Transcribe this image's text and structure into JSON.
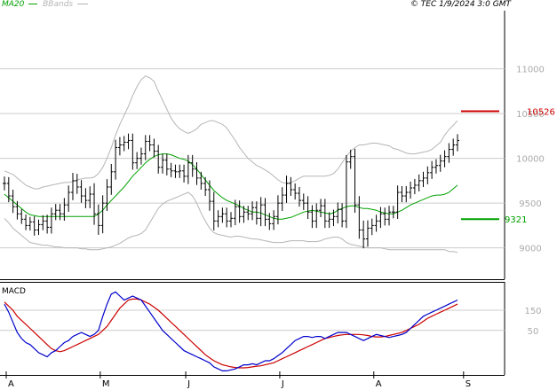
{
  "header": {
    "legend_ma": "MA20",
    "legend_bb": "BBands",
    "copyright": "© TEC 1/9/2024 3:0 GMT"
  },
  "colors": {
    "ma": "#00a000",
    "bbands": "#b5b5b5",
    "price": "#000000",
    "resistance": "#cc0000",
    "support": "#00a000",
    "macd": "#0000cc",
    "signal": "#cc0000",
    "grid": "#cccccc",
    "axis_text": "#aaaaaa"
  },
  "chart_data": [
    {
      "type": "ohlc",
      "name": "price",
      "yticks": [
        {
          "value": 9000,
          "label": "9000"
        },
        {
          "value": 9500,
          "label": "9500"
        },
        {
          "value": 10000,
          "label": "10000"
        },
        {
          "value": 10500,
          "label": "10500"
        },
        {
          "value": 11000,
          "label": "11000"
        }
      ],
      "ylim": [
        8650,
        11650
      ],
      "xticks": [
        "A",
        "M",
        "J",
        "J",
        "A",
        "S"
      ],
      "xtick_day_index": [
        0,
        22,
        42,
        64,
        86,
        107
      ],
      "n_days": 107,
      "closes": [
        9720,
        9580,
        9460,
        9380,
        9320,
        9250,
        9290,
        9200,
        9260,
        9300,
        9230,
        9380,
        9420,
        9380,
        9480,
        9620,
        9750,
        9680,
        9580,
        9530,
        9600,
        9380,
        9250,
        9500,
        9680,
        9850,
        10120,
        10150,
        10180,
        10200,
        9950,
        10000,
        10050,
        10190,
        10150,
        10080,
        9900,
        9980,
        9880,
        9860,
        9850,
        9860,
        9800,
        9950,
        9880,
        9780,
        9720,
        9650,
        9520,
        9300,
        9350,
        9380,
        9300,
        9330,
        9460,
        9350,
        9400,
        9380,
        9450,
        9330,
        9480,
        9320,
        9270,
        9350,
        9500,
        9590,
        9720,
        9650,
        9610,
        9530,
        9500,
        9400,
        9300,
        9420,
        9470,
        9300,
        9320,
        9350,
        9430,
        9300,
        9960,
        10020,
        9480,
        9200,
        9100,
        9220,
        9250,
        9300,
        9380,
        9320,
        9400,
        9400,
        9620,
        9580,
        9620,
        9670,
        9700,
        9750,
        9780,
        9840,
        9900,
        9920,
        9970,
        10020,
        10100,
        10150,
        10200
      ],
      "ranges": [
        220,
        200,
        200,
        180,
        150,
        150,
        160,
        180,
        160,
        180,
        200,
        200,
        200,
        200,
        220,
        220,
        250,
        220,
        220,
        250,
        250,
        350,
        300,
        250,
        250,
        250,
        250,
        250,
        200,
        220,
        220,
        200,
        200,
        200,
        200,
        200,
        200,
        200,
        200,
        200,
        200,
        200,
        200,
        250,
        250,
        220,
        200,
        200,
        300,
        300,
        200,
        200,
        200,
        200,
        220,
        200,
        200,
        200,
        200,
        200,
        250,
        220,
        200,
        200,
        250,
        250,
        250,
        200,
        200,
        200,
        220,
        220,
        220,
        220,
        220,
        220,
        220,
        220,
        220,
        200,
        220,
        220,
        250,
        280,
        300,
        250,
        220,
        200,
        220,
        200,
        200,
        200,
        220,
        200,
        200,
        200,
        200,
        200,
        200,
        200,
        200,
        200,
        200,
        200,
        200,
        200,
        200
      ],
      "ma20": [
        9600,
        9560,
        9520,
        9480,
        9440,
        9400,
        9370,
        9360,
        9350,
        9350,
        9350,
        9350,
        9350,
        9350,
        9350,
        9350,
        9350,
        9350,
        9350,
        9350,
        9350,
        9350,
        9380,
        9420,
        9480,
        9530,
        9580,
        9630,
        9680,
        9740,
        9800,
        9850,
        9900,
        9950,
        9990,
        10020,
        10040,
        10050,
        10050,
        10040,
        10020,
        10000,
        9990,
        9970,
        9930,
        9880,
        9820,
        9760,
        9700,
        9640,
        9600,
        9560,
        9530,
        9510,
        9490,
        9470,
        9440,
        9420,
        9400,
        9400,
        9390,
        9370,
        9350,
        9330,
        9320,
        9320,
        9330,
        9340,
        9360,
        9380,
        9400,
        9410,
        9420,
        9410,
        9400,
        9390,
        9380,
        9390,
        9420,
        9440,
        9460,
        9470,
        9470,
        9450,
        9440,
        9440,
        9430,
        9420,
        9400,
        9390,
        9380,
        9380,
        9400,
        9420,
        9450,
        9480,
        9500,
        9520,
        9540,
        9560,
        9580,
        9590,
        9590,
        9600,
        9620,
        9660,
        9700
      ],
      "bb_upper": [
        9860,
        9840,
        9820,
        9780,
        9740,
        9700,
        9680,
        9660,
        9660,
        9680,
        9690,
        9700,
        9710,
        9720,
        9730,
        9730,
        9740,
        9760,
        9770,
        9780,
        9780,
        9790,
        9830,
        9900,
        10000,
        10120,
        10260,
        10380,
        10480,
        10580,
        10700,
        10800,
        10880,
        10920,
        10900,
        10860,
        10750,
        10650,
        10550,
        10450,
        10380,
        10330,
        10300,
        10280,
        10300,
        10330,
        10380,
        10400,
        10420,
        10420,
        10400,
        10380,
        10340,
        10270,
        10200,
        10120,
        10060,
        10000,
        9960,
        9920,
        9900,
        9870,
        9840,
        9800,
        9760,
        9730,
        9720,
        9730,
        9750,
        9780,
        9800,
        9800,
        9800,
        9800,
        9800,
        9800,
        9810,
        9830,
        9880,
        9950,
        10020,
        10080,
        10120,
        10150,
        10150,
        10160,
        10170,
        10170,
        10160,
        10150,
        10140,
        10110,
        10100,
        10080,
        10060,
        10050,
        10050,
        10060,
        10070,
        10080,
        10100,
        10140,
        10180,
        10260,
        10320,
        10370,
        10420
      ],
      "bb_lower": [
        9330,
        9280,
        9220,
        9180,
        9140,
        9100,
        9060,
        9050,
        9040,
        9030,
        9030,
        9020,
        9010,
        9010,
        9000,
        9000,
        9000,
        9000,
        8990,
        8990,
        8980,
        8980,
        8980,
        8990,
        9000,
        9010,
        9030,
        9050,
        9080,
        9110,
        9130,
        9140,
        9160,
        9200,
        9280,
        9360,
        9440,
        9490,
        9520,
        9540,
        9560,
        9580,
        9600,
        9620,
        9580,
        9500,
        9390,
        9300,
        9220,
        9170,
        9150,
        9140,
        9130,
        9120,
        9130,
        9130,
        9120,
        9110,
        9100,
        9100,
        9090,
        9080,
        9070,
        9060,
        9060,
        9060,
        9070,
        9080,
        9080,
        9080,
        9080,
        9070,
        9070,
        9070,
        9080,
        9100,
        9110,
        9120,
        9120,
        9100,
        9060,
        9040,
        9030,
        9020,
        9010,
        9000,
        9000,
        9000,
        9000,
        8990,
        8980,
        8980,
        8980,
        8980,
        8980,
        8980,
        8980,
        8980,
        8980,
        8980,
        8980,
        8980,
        8980,
        8980,
        8960,
        8960,
        8950
      ],
      "resistance": {
        "value": 10526,
        "label": "10526"
      },
      "support": {
        "value": 9321,
        "label": "9321"
      },
      "legend": [
        "MA20",
        "BBands"
      ]
    },
    {
      "type": "line",
      "name": "MACD",
      "title": "MACD",
      "yticks": [
        {
          "value": 50,
          "label": "50"
        },
        {
          "value": 150,
          "label": "150"
        }
      ],
      "ylim": [
        -170,
        290
      ],
      "macd": [
        180,
        140,
        90,
        40,
        10,
        -10,
        -20,
        -40,
        -60,
        -70,
        -80,
        -60,
        -50,
        -30,
        -10,
        0,
        20,
        30,
        40,
        30,
        20,
        30,
        50,
        120,
        180,
        230,
        240,
        220,
        200,
        210,
        220,
        210,
        200,
        170,
        140,
        110,
        80,
        50,
        30,
        10,
        -10,
        -30,
        -50,
        -60,
        -70,
        -80,
        -90,
        -100,
        -110,
        -130,
        -140,
        -150,
        -150,
        -145,
        -140,
        -130,
        -120,
        -120,
        -115,
        -120,
        -110,
        -100,
        -100,
        -90,
        -75,
        -60,
        -40,
        -20,
        0,
        10,
        20,
        20,
        15,
        20,
        20,
        10,
        20,
        30,
        40,
        40,
        40,
        30,
        20,
        10,
        0,
        10,
        20,
        30,
        25,
        20,
        15,
        20,
        25,
        30,
        40,
        60,
        80,
        100,
        120,
        130,
        140,
        150,
        160,
        170,
        180,
        190,
        200
      ],
      "signal": [
        190,
        170,
        150,
        120,
        100,
        80,
        60,
        40,
        20,
        0,
        -20,
        -40,
        -50,
        -55,
        -50,
        -40,
        -30,
        -20,
        -10,
        0,
        10,
        20,
        30,
        50,
        70,
        100,
        130,
        160,
        180,
        200,
        205,
        205,
        200,
        190,
        180,
        165,
        150,
        130,
        110,
        90,
        70,
        50,
        30,
        10,
        -10,
        -30,
        -50,
        -70,
        -85,
        -100,
        -110,
        -120,
        -125,
        -130,
        -133,
        -135,
        -135,
        -133,
        -130,
        -127,
        -125,
        -120,
        -115,
        -110,
        -100,
        -90,
        -80,
        -70,
        -60,
        -50,
        -40,
        -30,
        -20,
        -10,
        0,
        10,
        15,
        20,
        25,
        28,
        30,
        30,
        30,
        30,
        28,
        25,
        20,
        18,
        18,
        20,
        25,
        30,
        35,
        40,
        50,
        60,
        70,
        80,
        95,
        110,
        120,
        130,
        140,
        150,
        160,
        170,
        180
      ]
    }
  ]
}
